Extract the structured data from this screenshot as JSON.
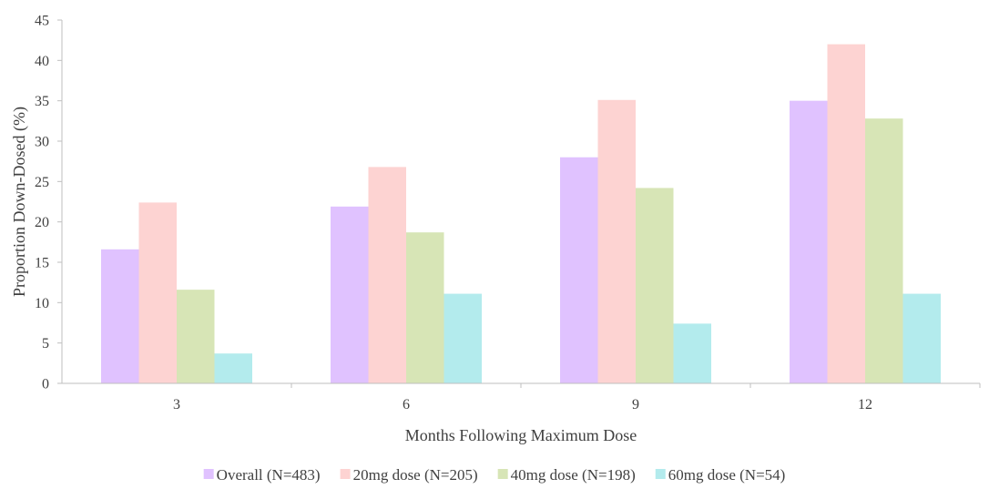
{
  "chart_data": {
    "type": "bar",
    "title": "",
    "xlabel": "Months Following Maximum Dose",
    "ylabel": "Proportion Down-Dosed (%)",
    "categories": [
      "3",
      "6",
      "9",
      "12"
    ],
    "ylim": [
      0,
      45
    ],
    "yticks": [
      0,
      5,
      10,
      15,
      20,
      25,
      30,
      35,
      40,
      45
    ],
    "grid": false,
    "legend_position": "bottom",
    "series": [
      {
        "name": "Overall (N=483)",
        "color": "#e0c2ff",
        "values": [
          16.6,
          21.9,
          28.0,
          35.0
        ]
      },
      {
        "name": "20mg dose (N=205)",
        "color": "#fdd3d2",
        "values": [
          22.4,
          26.8,
          35.1,
          42.0
        ]
      },
      {
        "name": "40mg dose (N=198)",
        "color": "#d7e5b6",
        "values": [
          11.6,
          18.7,
          24.2,
          32.8
        ]
      },
      {
        "name": "60mg dose (N=54)",
        "color": "#b3ebed",
        "values": [
          3.7,
          11.1,
          7.4,
          11.1
        ]
      }
    ]
  }
}
